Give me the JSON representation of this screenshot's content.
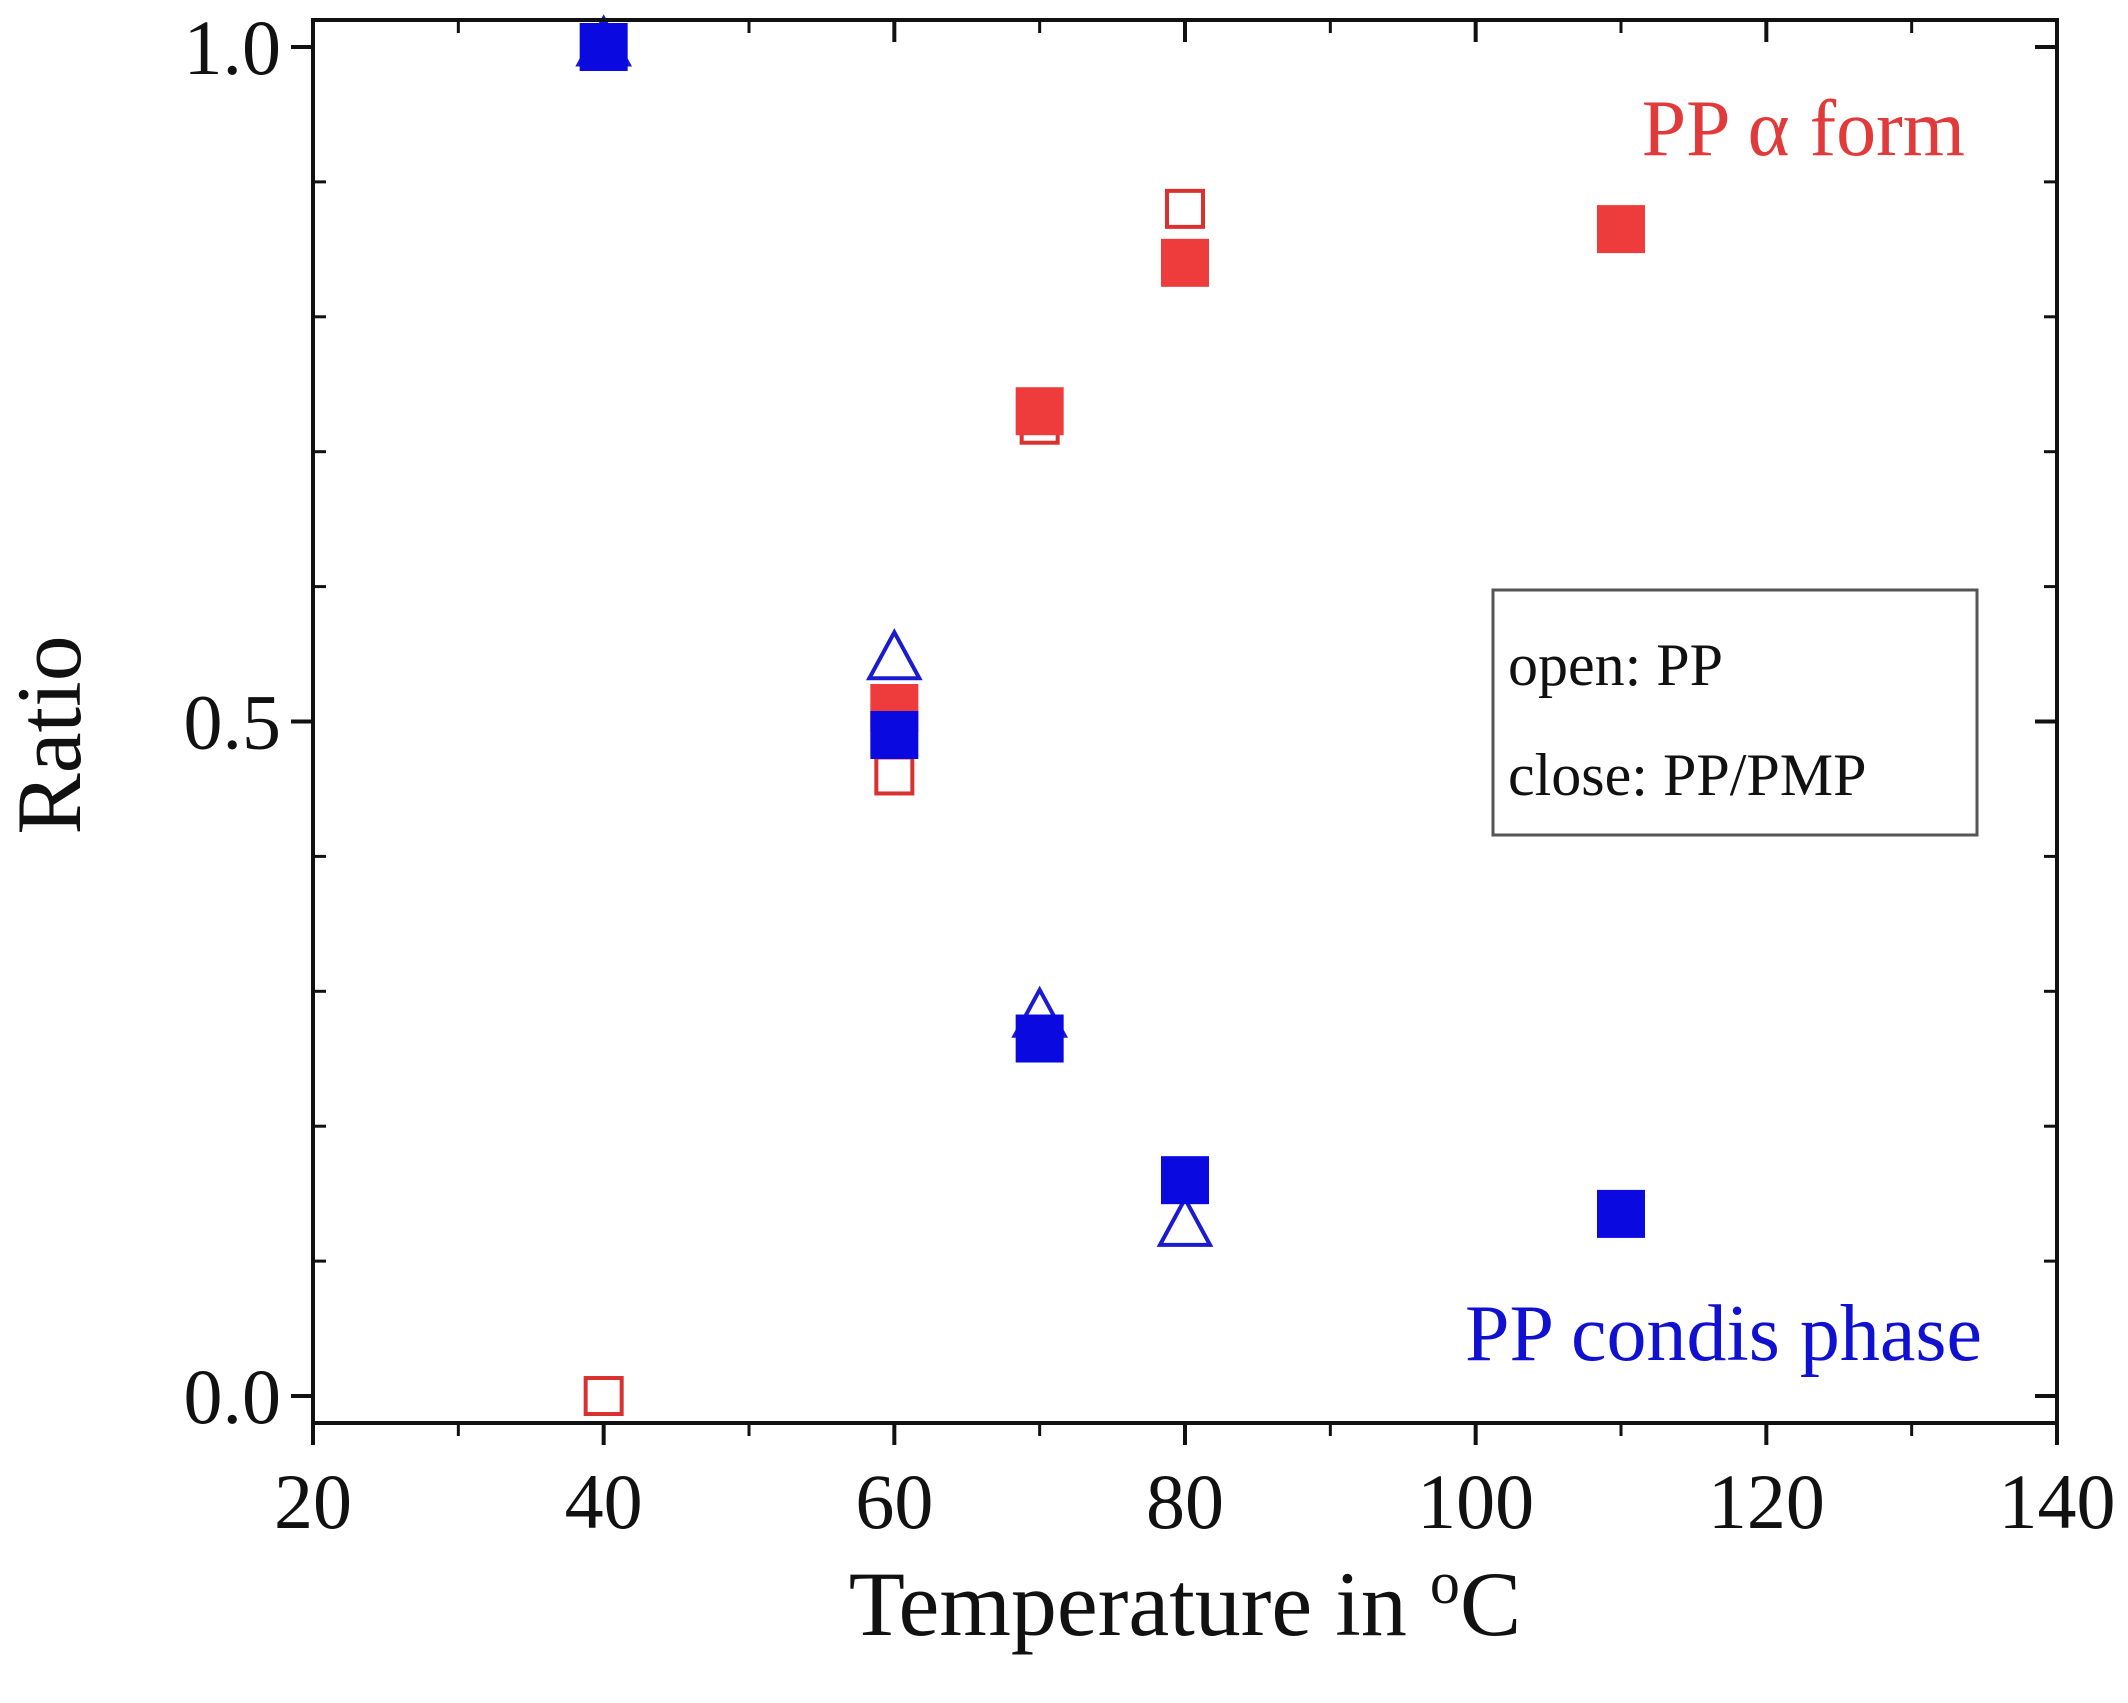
{
  "chart_data": {
    "type": "scatter",
    "xlabel": "Temperature in",
    "xlabel_unit_sup": "o",
    "xlabel_unit": "C",
    "ylabel": "Ratio",
    "xlim": [
      20,
      140
    ],
    "ylim": [
      -0.02,
      1.02
    ],
    "x_ticks": [
      20,
      40,
      60,
      80,
      100,
      120,
      140
    ],
    "x_tick_labels": [
      "20",
      "40",
      "60",
      "80",
      "100",
      "120",
      "140"
    ],
    "y_ticks": [
      0.0,
      0.5,
      1.0
    ],
    "y_tick_labels": [
      "0.0",
      "0.5",
      "1.0"
    ],
    "grid": false,
    "annotations": [
      {
        "text": "PP α form",
        "color": "#e03a3a"
      },
      {
        "text": "PP condis phase",
        "color": "#1010d0"
      }
    ],
    "legend_box": {
      "lines": [
        "open: PP",
        "close: PP/PMP"
      ],
      "placement": "right-middle"
    },
    "series": [
      {
        "marker": "square",
        "filled": false,
        "color": "#d93030",
        "points": [
          [
            40,
            0.0
          ],
          [
            60,
            0.46
          ],
          [
            70,
            0.72
          ],
          [
            80,
            0.88
          ]
        ]
      },
      {
        "marker": "square",
        "filled": true,
        "color": "#ee3b3b",
        "points": [
          [
            60,
            0.51
          ],
          [
            70,
            0.73
          ],
          [
            80,
            0.84
          ],
          [
            110,
            0.865
          ]
        ]
      },
      {
        "marker": "triangle",
        "filled": false,
        "color": "#1a1ad0",
        "points": [
          [
            40,
            1.0
          ],
          [
            60,
            0.545
          ],
          [
            70,
            0.28
          ],
          [
            80,
            0.125
          ]
        ]
      },
      {
        "marker": "square",
        "filled": true,
        "color": "#0a0ae0",
        "points": [
          [
            40,
            1.0
          ],
          [
            60,
            0.49
          ],
          [
            70,
            0.265
          ],
          [
            80,
            0.16
          ],
          [
            110,
            0.135
          ]
        ]
      }
    ]
  }
}
